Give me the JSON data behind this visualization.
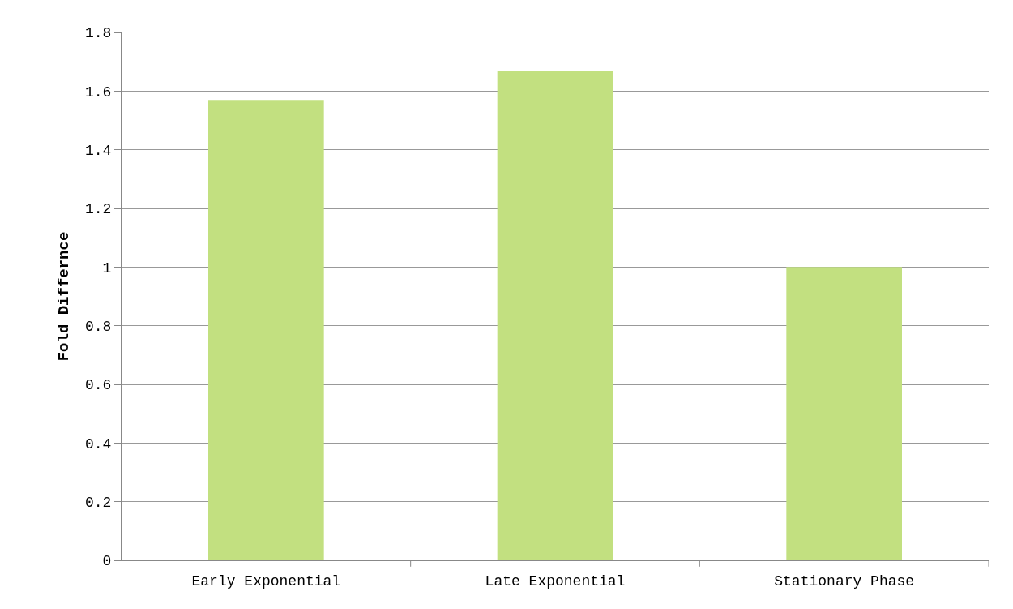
{
  "chart_data": {
    "type": "bar",
    "ylabel": "Fold Differnce",
    "categories": [
      "Early Exponential",
      "Late Exponential",
      "Stationary Phase"
    ],
    "values": [
      1.57,
      1.67,
      1.0
    ],
    "color": "#c2e080",
    "ylim": [
      0,
      1.8
    ],
    "yticks": [
      0,
      0.2,
      0.4,
      0.6,
      0.8,
      1,
      1.2,
      1.4,
      1.6,
      1.8
    ],
    "grid": "y"
  }
}
